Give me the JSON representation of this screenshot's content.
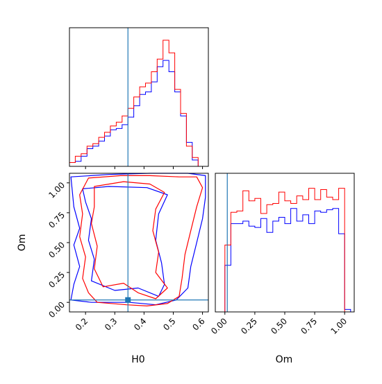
{
  "chart_data": {
    "type": "corner",
    "parameters": [
      "H0",
      "Om"
    ],
    "truth": {
      "H0": 0.345,
      "Om": 0.02
    },
    "colors": {
      "series_a": "#ff0000",
      "series_b": "#0000ff",
      "truth": "#1f77b4",
      "axes": "#000000"
    },
    "series": [
      {
        "color_key": "series_a"
      },
      {
        "color_key": "series_b"
      }
    ],
    "h0_hist": {
      "xlim": [
        0.145,
        0.62
      ],
      "edges": [
        0.145,
        0.165,
        0.185,
        0.205,
        0.225,
        0.245,
        0.265,
        0.285,
        0.305,
        0.325,
        0.345,
        0.365,
        0.385,
        0.405,
        0.425,
        0.445,
        0.465,
        0.485,
        0.505,
        0.525,
        0.545,
        0.565,
        0.585,
        0.605
      ],
      "red": [
        0.03,
        0.08,
        0.1,
        0.16,
        0.18,
        0.23,
        0.27,
        0.32,
        0.35,
        0.4,
        0.46,
        0.55,
        0.63,
        0.66,
        0.75,
        0.85,
        1.0,
        0.9,
        0.61,
        0.42,
        0.16,
        0.07,
        0.0
      ],
      "blue": [
        0.03,
        0.04,
        0.08,
        0.14,
        0.16,
        0.2,
        0.24,
        0.29,
        0.3,
        0.33,
        0.39,
        0.48,
        0.57,
        0.59,
        0.67,
        0.79,
        0.84,
        0.75,
        0.59,
        0.4,
        0.19,
        0.05,
        0.0
      ]
    },
    "om_hist": {
      "xlim": [
        -0.08,
        1.08
      ],
      "edges": [
        -0.08,
        0.0,
        0.05,
        0.1,
        0.15,
        0.2,
        0.25,
        0.3,
        0.35,
        0.4,
        0.45,
        0.5,
        0.55,
        0.6,
        0.65,
        0.7,
        0.75,
        0.8,
        0.85,
        0.9,
        0.95,
        1.0,
        1.05
      ],
      "red": [
        0.0,
        0.53,
        0.79,
        0.8,
        0.96,
        0.88,
        0.9,
        0.78,
        0.85,
        0.86,
        0.95,
        0.88,
        0.86,
        0.92,
        0.89,
        0.98,
        0.89,
        0.97,
        0.91,
        0.89,
        0.98,
        0.0
      ],
      "blue": [
        0.0,
        0.37,
        0.7,
        0.7,
        0.72,
        0.68,
        0.67,
        0.74,
        0.63,
        0.72,
        0.75,
        0.7,
        0.82,
        0.72,
        0.77,
        0.7,
        0.8,
        0.79,
        0.81,
        0.82,
        0.62,
        0.02
      ]
    },
    "contours": {
      "xlim": [
        0.145,
        0.62
      ],
      "ylim": [
        -0.08,
        1.08
      ],
      "red_outer": [
        [
          0.21,
          1.04
        ],
        [
          0.32,
          1.06
        ],
        [
          0.42,
          1.06
        ],
        [
          0.52,
          1.05
        ],
        [
          0.58,
          1.05
        ],
        [
          0.6,
          0.96
        ],
        [
          0.58,
          0.8
        ],
        [
          0.56,
          0.6
        ],
        [
          0.54,
          0.4
        ],
        [
          0.53,
          0.2
        ],
        [
          0.52,
          0.05
        ],
        [
          0.48,
          -0.01
        ],
        [
          0.41,
          -0.03
        ],
        [
          0.34,
          -0.02
        ],
        [
          0.24,
          0.0
        ],
        [
          0.21,
          0.08
        ],
        [
          0.19,
          0.2
        ],
        [
          0.2,
          0.38
        ],
        [
          0.18,
          0.55
        ],
        [
          0.19,
          0.74
        ],
        [
          0.18,
          0.9
        ]
      ],
      "red_inner": [
        [
          0.23,
          0.97
        ],
        [
          0.33,
          1.01
        ],
        [
          0.42,
          0.99
        ],
        [
          0.47,
          0.92
        ],
        [
          0.44,
          0.78
        ],
        [
          0.43,
          0.6
        ],
        [
          0.45,
          0.42
        ],
        [
          0.44,
          0.25
        ],
        [
          0.48,
          0.12
        ],
        [
          0.44,
          0.03
        ],
        [
          0.38,
          0.08
        ],
        [
          0.33,
          0.16
        ],
        [
          0.26,
          0.13
        ],
        [
          0.23,
          0.28
        ],
        [
          0.24,
          0.47
        ],
        [
          0.22,
          0.66
        ],
        [
          0.23,
          0.8
        ]
      ],
      "blue_outer": [
        [
          0.15,
          1.05
        ],
        [
          0.28,
          1.07
        ],
        [
          0.42,
          1.08
        ],
        [
          0.55,
          1.08
        ],
        [
          0.61,
          1.06
        ],
        [
          0.61,
          0.88
        ],
        [
          0.6,
          0.7
        ],
        [
          0.58,
          0.5
        ],
        [
          0.56,
          0.3
        ],
        [
          0.55,
          0.12
        ],
        [
          0.51,
          0.02
        ],
        [
          0.44,
          -0.02
        ],
        [
          0.35,
          0.0
        ],
        [
          0.22,
          0.0
        ],
        [
          0.15,
          0.02
        ],
        [
          0.16,
          0.15
        ],
        [
          0.18,
          0.3
        ],
        [
          0.16,
          0.48
        ],
        [
          0.18,
          0.62
        ],
        [
          0.16,
          0.8
        ]
      ],
      "blue_inner": [
        [
          0.19,
          0.95
        ],
        [
          0.28,
          0.97
        ],
        [
          0.41,
          0.96
        ],
        [
          0.48,
          0.9
        ],
        [
          0.45,
          0.74
        ],
        [
          0.44,
          0.52
        ],
        [
          0.46,
          0.33
        ],
        [
          0.47,
          0.15
        ],
        [
          0.45,
          0.05
        ],
        [
          0.38,
          0.12
        ],
        [
          0.3,
          0.1
        ],
        [
          0.22,
          0.18
        ],
        [
          0.23,
          0.36
        ],
        [
          0.21,
          0.52
        ],
        [
          0.22,
          0.7
        ],
        [
          0.2,
          0.84
        ]
      ]
    },
    "h0_ticks": [
      {
        "value": 0.2,
        "label": "0.2"
      },
      {
        "value": 0.3,
        "label": "0.3"
      },
      {
        "value": 0.4,
        "label": "0.4"
      },
      {
        "value": 0.5,
        "label": "0.5"
      },
      {
        "value": 0.6,
        "label": "0.6"
      }
    ],
    "om_ticks": [
      {
        "value": 0.0,
        "label": "0.00"
      },
      {
        "value": 0.25,
        "label": "0.25"
      },
      {
        "value": 0.5,
        "label": "0.50"
      },
      {
        "value": 0.75,
        "label": "0.75"
      },
      {
        "value": 1.0,
        "label": "1.00"
      }
    ],
    "xlabel_left": "H0",
    "xlabel_right": "Om",
    "ylabel": "Om"
  }
}
